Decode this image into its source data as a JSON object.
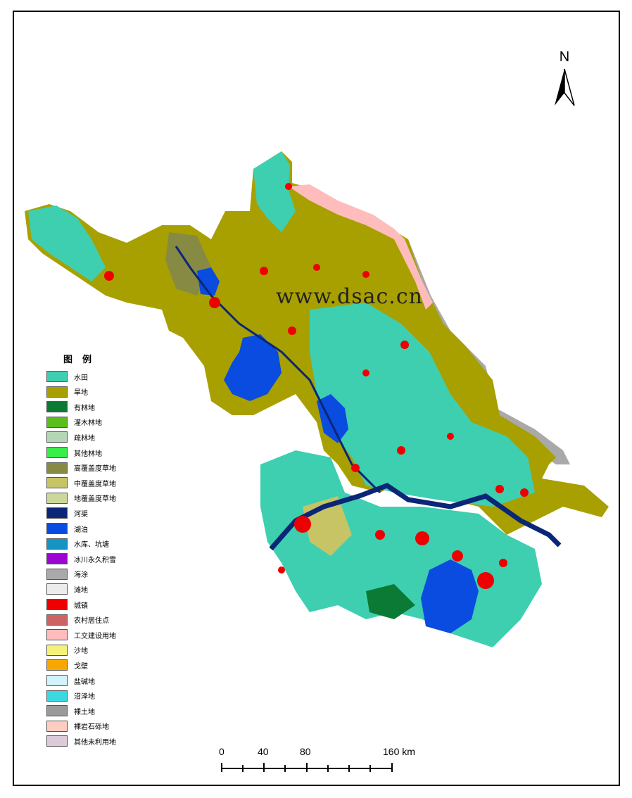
{
  "watermark": "www.dsac.cn",
  "north_arrow": {
    "label": "N"
  },
  "legend": {
    "title": "图例",
    "items": [
      {
        "label": "水田",
        "color": "#3dcfb0"
      },
      {
        "label": "旱地",
        "color": "#a8a000"
      },
      {
        "label": "有林地",
        "color": "#0a7a34"
      },
      {
        "label": "灌木林地",
        "color": "#5cbe1c"
      },
      {
        "label": "疏林地",
        "color": "#b4d6b4"
      },
      {
        "label": "其他林地",
        "color": "#38ee48"
      },
      {
        "label": "高覆盖度草地",
        "color": "#878a43"
      },
      {
        "label": "中覆盖度草地",
        "color": "#c6c464"
      },
      {
        "label": "地覆盖度草地",
        "color": "#ccd89a"
      },
      {
        "label": "河渠",
        "color": "#0b2676"
      },
      {
        "label": "湖泊",
        "color": "#0a4be0"
      },
      {
        "label": "水库、坑塘",
        "color": "#1694c4"
      },
      {
        "label": "冰川永久积雪",
        "color": "#9b06d2"
      },
      {
        "label": "海涂",
        "color": "#a9a9a9"
      },
      {
        "label": "滩地",
        "color": "#ececec"
      },
      {
        "label": "城镇",
        "color": "#ee0000"
      },
      {
        "label": "农村居住点",
        "color": "#cd6464"
      },
      {
        "label": "工交建设用地",
        "color": "#ffbcbc"
      },
      {
        "label": "沙地",
        "color": "#f4f27a"
      },
      {
        "label": "戈壁",
        "color": "#f6a800"
      },
      {
        "label": "盐碱地",
        "color": "#d2f4fa"
      },
      {
        "label": "沼泽地",
        "color": "#3cd8e2"
      },
      {
        "label": "裸土地",
        "color": "#9a9a9a"
      },
      {
        "label": "裸岩石砾地",
        "color": "#ffcdc0"
      },
      {
        "label": "其他未利用地",
        "color": "#dccad8"
      }
    ]
  },
  "scale_bar": {
    "labels": [
      "0",
      "40",
      "80",
      "160 km"
    ],
    "values_km": [
      0,
      40,
      80,
      160
    ]
  }
}
